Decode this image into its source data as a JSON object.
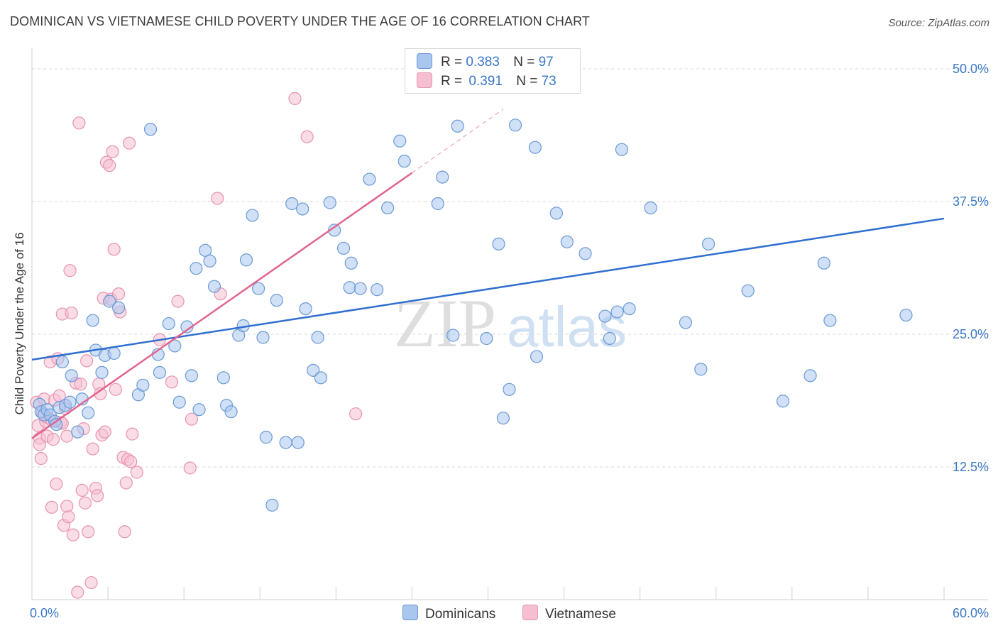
{
  "header": {
    "title": "DOMINICAN VS VIETNAMESE CHILD POVERTY UNDER THE AGE OF 16 CORRELATION CHART",
    "source": "Source: ZipAtlas.com"
  },
  "legend": {
    "dominican": {
      "r_label": "R =",
      "r_value": "0.383",
      "n_label": "N =",
      "n_value": "97"
    },
    "vietnamese": {
      "r_label": "R =",
      "r_value": "0.391",
      "n_label": "N =",
      "n_value": "73"
    }
  },
  "bottom_legend": {
    "dominicans": "Dominicans",
    "vietnamese": "Vietnamese"
  },
  "watermark": {
    "zip": "ZIP",
    "atlas": "atlas"
  },
  "colors": {
    "dominican_fill": "#a9c6ef",
    "dominican_stroke": "#6a9ad6",
    "dominican_line": "#2f6fcf",
    "vietnamese_fill": "#f6bfd1",
    "vietnamese_stroke": "#e893b0",
    "vietnamese_line": "#e0648e",
    "tick_label": "#3b78c8",
    "grid": "#d9d9d9"
  },
  "chart_data": {
    "type": "scatter",
    "title": "DOMINICAN VS VIETNAMESE CHILD POVERTY UNDER THE AGE OF 16 CORRELATION CHART",
    "xlabel": "",
    "ylabel": "Child Poverty Under the Age of 16",
    "xlim": [
      0,
      60
    ],
    "ylim": [
      0,
      50
    ],
    "x_tick_labels": [
      "0.0%",
      "60.0%"
    ],
    "y_ticks": [
      12.5,
      25.0,
      37.5,
      50.0
    ],
    "y_tick_labels": [
      "12.5%",
      "25.0%",
      "37.5%",
      "50.0%"
    ],
    "grid": true,
    "legend_placement": "top-center",
    "series": [
      {
        "name": "Dominicans",
        "r": 0.383,
        "n": 97,
        "trend": {
          "x": [
            0,
            60
          ],
          "y": [
            22.6,
            35.9
          ]
        },
        "points": [
          [
            0.5,
            18.4
          ],
          [
            0.6,
            17.7
          ],
          [
            0.8,
            17.4
          ],
          [
            1.0,
            17.9
          ],
          [
            1.2,
            17.4
          ],
          [
            1.5,
            16.8
          ],
          [
            1.6,
            16.5
          ],
          [
            1.8,
            18.1
          ],
          [
            2.0,
            22.4
          ],
          [
            2.2,
            18.3
          ],
          [
            2.5,
            18.6
          ],
          [
            2.6,
            21.1
          ],
          [
            3.0,
            15.8
          ],
          [
            3.3,
            18.9
          ],
          [
            3.7,
            17.6
          ],
          [
            4.0,
            26.3
          ],
          [
            4.2,
            23.5
          ],
          [
            4.6,
            21.4
          ],
          [
            4.8,
            23.0
          ],
          [
            5.1,
            28.1
          ],
          [
            5.4,
            23.2
          ],
          [
            5.7,
            27.5
          ],
          [
            7.0,
            19.3
          ],
          [
            7.3,
            20.2
          ],
          [
            7.8,
            44.3
          ],
          [
            8.3,
            23.1
          ],
          [
            8.4,
            21.4
          ],
          [
            9.0,
            26.0
          ],
          [
            9.4,
            23.9
          ],
          [
            9.7,
            18.6
          ],
          [
            10.2,
            25.7
          ],
          [
            10.5,
            21.1
          ],
          [
            10.8,
            31.2
          ],
          [
            11.0,
            17.9
          ],
          [
            11.4,
            32.9
          ],
          [
            11.7,
            31.9
          ],
          [
            12.0,
            29.5
          ],
          [
            12.6,
            20.9
          ],
          [
            12.8,
            18.3
          ],
          [
            13.1,
            17.7
          ],
          [
            13.6,
            24.9
          ],
          [
            13.9,
            25.8
          ],
          [
            14.1,
            32.0
          ],
          [
            14.5,
            36.2
          ],
          [
            14.9,
            29.3
          ],
          [
            15.2,
            24.7
          ],
          [
            15.4,
            15.3
          ],
          [
            15.8,
            8.9
          ],
          [
            16.1,
            28.2
          ],
          [
            16.7,
            14.8
          ],
          [
            17.1,
            37.3
          ],
          [
            17.5,
            14.8
          ],
          [
            17.8,
            36.8
          ],
          [
            18.0,
            27.4
          ],
          [
            18.5,
            21.6
          ],
          [
            18.8,
            24.7
          ],
          [
            19.0,
            20.9
          ],
          [
            19.6,
            37.4
          ],
          [
            19.9,
            34.8
          ],
          [
            20.5,
            33.1
          ],
          [
            20.9,
            29.4
          ],
          [
            21.0,
            31.7
          ],
          [
            21.6,
            29.3
          ],
          [
            22.2,
            39.6
          ],
          [
            22.7,
            29.2
          ],
          [
            23.4,
            36.9
          ],
          [
            24.2,
            43.2
          ],
          [
            24.5,
            41.3
          ],
          [
            26.7,
            37.3
          ],
          [
            27.0,
            39.8
          ],
          [
            27.7,
            24.9
          ],
          [
            28.0,
            44.6
          ],
          [
            29.9,
            24.6
          ],
          [
            30.7,
            33.5
          ],
          [
            31.0,
            17.1
          ],
          [
            31.4,
            19.8
          ],
          [
            31.8,
            44.7
          ],
          [
            33.1,
            42.6
          ],
          [
            33.2,
            22.9
          ],
          [
            34.5,
            36.4
          ],
          [
            35.2,
            33.7
          ],
          [
            36.4,
            32.6
          ],
          [
            37.7,
            26.7
          ],
          [
            38.0,
            24.6
          ],
          [
            38.5,
            27.1
          ],
          [
            38.8,
            42.4
          ],
          [
            39.3,
            27.4
          ],
          [
            40.7,
            36.9
          ],
          [
            43.0,
            26.1
          ],
          [
            44.0,
            21.7
          ],
          [
            44.5,
            33.5
          ],
          [
            47.1,
            29.1
          ],
          [
            49.4,
            18.7
          ],
          [
            51.2,
            21.1
          ],
          [
            52.1,
            31.7
          ],
          [
            52.5,
            26.3
          ],
          [
            57.5,
            26.8
          ]
        ]
      },
      {
        "name": "Vietnamese",
        "r": 0.391,
        "n": 73,
        "trend": {
          "x": [
            0,
            25
          ],
          "y": [
            15.2,
            40.2
          ],
          "dashed_to": {
            "x": 31,
            "y": 46.2
          }
        },
        "points": [
          [
            0.3,
            18.6
          ],
          [
            0.4,
            16.4
          ],
          [
            0.5,
            15.2
          ],
          [
            0.5,
            14.6
          ],
          [
            0.6,
            13.3
          ],
          [
            0.7,
            17.6
          ],
          [
            0.8,
            18.9
          ],
          [
            0.9,
            16.8
          ],
          [
            1.0,
            15.4
          ],
          [
            1.1,
            17.1
          ],
          [
            1.2,
            22.4
          ],
          [
            1.3,
            16.9
          ],
          [
            1.3,
            8.7
          ],
          [
            1.4,
            15.1
          ],
          [
            1.5,
            18.8
          ],
          [
            1.6,
            10.9
          ],
          [
            1.7,
            22.7
          ],
          [
            1.8,
            19.2
          ],
          [
            1.9,
            16.7
          ],
          [
            2.0,
            26.9
          ],
          [
            2.0,
            16.6
          ],
          [
            2.1,
            7.0
          ],
          [
            2.2,
            18.0
          ],
          [
            2.3,
            8.8
          ],
          [
            2.3,
            15.4
          ],
          [
            2.4,
            7.8
          ],
          [
            2.5,
            31.0
          ],
          [
            2.6,
            27.0
          ],
          [
            2.7,
            6.1
          ],
          [
            2.9,
            20.4
          ],
          [
            3.0,
            0.7
          ],
          [
            3.1,
            44.9
          ],
          [
            3.2,
            20.3
          ],
          [
            3.3,
            10.3
          ],
          [
            3.4,
            16.1
          ],
          [
            3.5,
            9.1
          ],
          [
            3.6,
            22.5
          ],
          [
            3.7,
            6.4
          ],
          [
            3.9,
            1.6
          ],
          [
            4.0,
            14.2
          ],
          [
            4.2,
            10.5
          ],
          [
            4.3,
            9.8
          ],
          [
            4.4,
            20.3
          ],
          [
            4.5,
            19.4
          ],
          [
            4.6,
            15.5
          ],
          [
            4.7,
            28.4
          ],
          [
            4.8,
            15.8
          ],
          [
            4.9,
            41.2
          ],
          [
            5.1,
            40.9
          ],
          [
            5.2,
            28.3
          ],
          [
            5.3,
            42.2
          ],
          [
            5.4,
            33.0
          ],
          [
            5.5,
            19.8
          ],
          [
            5.7,
            28.8
          ],
          [
            5.8,
            27.1
          ],
          [
            6.0,
            13.4
          ],
          [
            6.1,
            6.4
          ],
          [
            6.2,
            11.0
          ],
          [
            6.3,
            13.2
          ],
          [
            6.4,
            43.0
          ],
          [
            6.5,
            13.0
          ],
          [
            6.6,
            15.6
          ],
          [
            6.9,
            12.0
          ],
          [
            8.4,
            24.5
          ],
          [
            9.2,
            20.5
          ],
          [
            9.6,
            28.1
          ],
          [
            10.4,
            12.4
          ],
          [
            10.5,
            17.0
          ],
          [
            12.2,
            37.8
          ],
          [
            12.4,
            28.8
          ],
          [
            17.3,
            47.2
          ],
          [
            18.1,
            43.6
          ],
          [
            21.3,
            17.5
          ]
        ]
      }
    ]
  }
}
